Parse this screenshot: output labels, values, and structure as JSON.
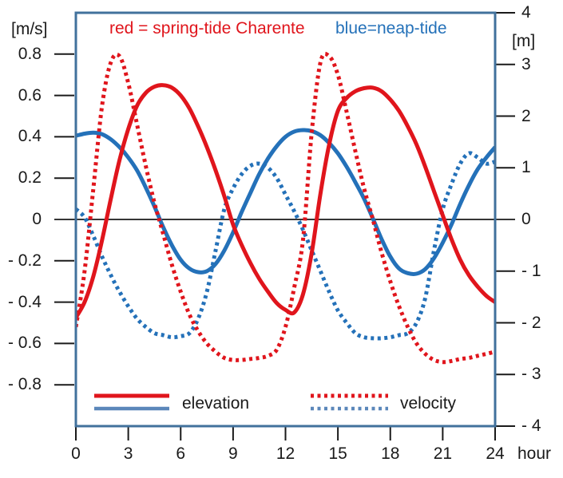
{
  "colors": {
    "red": "#e0151c",
    "blue": "#2471b9",
    "legend_blue": "#5b87ba",
    "frame": "#41719c",
    "text": "#1a1a1a"
  },
  "chart_data": {
    "type": "line",
    "title_left": "red = spring-tide Charente",
    "title_right": "blue=neap-tide",
    "x_label": "hour",
    "left_axis": {
      "label": "[m/s]",
      "lim": [
        -1,
        1
      ],
      "tick_values": [
        0.8,
        0.6,
        0.4,
        0.2,
        0,
        -0.2,
        -0.4,
        -0.6,
        -0.8
      ],
      "tick_labels": [
        "0.8",
        "0.6",
        "0.4",
        "0.2",
        "0",
        "- 0.2",
        "- 0.4",
        "- 0.6",
        "- 0.8"
      ]
    },
    "right_axis": {
      "label": "[m]",
      "lim": [
        -4,
        4
      ],
      "tick_values": [
        4,
        3,
        2,
        1,
        0,
        -1,
        -2,
        -3,
        -4
      ],
      "tick_labels": [
        "4",
        "3",
        "2",
        "1",
        "0",
        "- 1",
        "- 2",
        "- 3",
        "- 4"
      ]
    },
    "x_axis": {
      "lim": [
        0,
        24
      ],
      "tick_values": [
        0,
        3,
        6,
        9,
        12,
        15,
        18,
        21,
        24
      ],
      "tick_labels": [
        "0",
        "3",
        "6",
        "9",
        "12",
        "15",
        "18",
        "21",
        "24"
      ]
    },
    "legend": [
      {
        "label": "elevation",
        "style": "solid"
      },
      {
        "label": "velocity",
        "style": "dotted"
      }
    ],
    "zero_line": true,
    "grid": false,
    "x": [
      0,
      0.5,
      1,
      1.5,
      2,
      2.5,
      3,
      3.5,
      4,
      4.5,
      5,
      5.5,
      6,
      6.5,
      7,
      7.5,
      8,
      8.5,
      9,
      9.5,
      10,
      10.5,
      11,
      11.5,
      12,
      12.5,
      13,
      13.5,
      14,
      14.5,
      15,
      15.5,
      16,
      16.5,
      17,
      17.5,
      18,
      18.5,
      19,
      19.5,
      20,
      20.5,
      21,
      21.5,
      22,
      22.5,
      23,
      23.5,
      24
    ],
    "series": [
      {
        "id": "neap-elevation",
        "name": "neap-tide elevation",
        "color": "blue",
        "style": "solid",
        "axis": "right",
        "unit": "m",
        "values": [
          1.62,
          1.66,
          1.68,
          1.65,
          1.55,
          1.4,
          1.2,
          0.95,
          0.62,
          0.25,
          -0.15,
          -0.5,
          -0.78,
          -0.95,
          -1.02,
          -1.0,
          -0.86,
          -0.6,
          -0.25,
          0.15,
          0.52,
          0.88,
          1.18,
          1.42,
          1.6,
          1.7,
          1.73,
          1.71,
          1.63,
          1.48,
          1.28,
          1.02,
          0.72,
          0.4,
          0.02,
          -0.38,
          -0.72,
          -0.95,
          -1.04,
          -1.05,
          -0.96,
          -0.75,
          -0.45,
          -0.1,
          0.3,
          0.66,
          0.97,
          1.2,
          1.4
        ]
      },
      {
        "id": "neap-velocity",
        "name": "neap-tide velocity",
        "color": "blue",
        "style": "dotted",
        "axis": "left",
        "unit": "m/s",
        "values": [
          0.05,
          0.01,
          -0.08,
          -0.18,
          -0.27,
          -0.35,
          -0.42,
          -0.48,
          -0.52,
          -0.55,
          -0.56,
          -0.57,
          -0.565,
          -0.55,
          -0.48,
          -0.35,
          -0.15,
          0.05,
          0.15,
          0.22,
          0.26,
          0.27,
          0.25,
          0.2,
          0.12,
          0.04,
          -0.05,
          -0.15,
          -0.25,
          -0.35,
          -0.44,
          -0.5,
          -0.55,
          -0.57,
          -0.575,
          -0.575,
          -0.57,
          -0.56,
          -0.55,
          -0.5,
          -0.38,
          -0.15,
          0.05,
          0.17,
          0.27,
          0.32,
          0.3,
          0.27,
          0.28
        ]
      },
      {
        "id": "spring-velocity",
        "name": "spring-tide velocity",
        "color": "red",
        "style": "dotted",
        "axis": "left",
        "unit": "m/s",
        "values": [
          -0.52,
          -0.25,
          0.15,
          0.55,
          0.76,
          0.79,
          0.66,
          0.46,
          0.26,
          0.08,
          -0.07,
          -0.22,
          -0.35,
          -0.46,
          -0.54,
          -0.6,
          -0.64,
          -0.67,
          -0.68,
          -0.68,
          -0.675,
          -0.67,
          -0.66,
          -0.63,
          -0.52,
          -0.33,
          -0.1,
          0.42,
          0.76,
          0.79,
          0.7,
          0.52,
          0.33,
          0.15,
          0.0,
          -0.16,
          -0.3,
          -0.42,
          -0.52,
          -0.6,
          -0.65,
          -0.68,
          -0.69,
          -0.685,
          -0.675,
          -0.67,
          -0.66,
          -0.65,
          -0.64
        ]
      },
      {
        "id": "spring-elevation",
        "name": "spring-tide elevation",
        "color": "red",
        "style": "solid",
        "axis": "right",
        "unit": "m",
        "values": [
          -1.9,
          -1.6,
          -1.1,
          -0.4,
          0.4,
          1.15,
          1.75,
          2.2,
          2.45,
          2.57,
          2.6,
          2.55,
          2.4,
          2.15,
          1.8,
          1.4,
          0.95,
          0.45,
          -0.1,
          -0.5,
          -0.85,
          -1.15,
          -1.4,
          -1.62,
          -1.75,
          -1.8,
          -1.45,
          -0.65,
          0.5,
          1.45,
          2.1,
          2.35,
          2.48,
          2.54,
          2.55,
          2.48,
          2.32,
          2.1,
          1.8,
          1.45,
          1.02,
          0.55,
          0.08,
          -0.38,
          -0.78,
          -1.08,
          -1.3,
          -1.48,
          -1.6
        ]
      }
    ]
  }
}
